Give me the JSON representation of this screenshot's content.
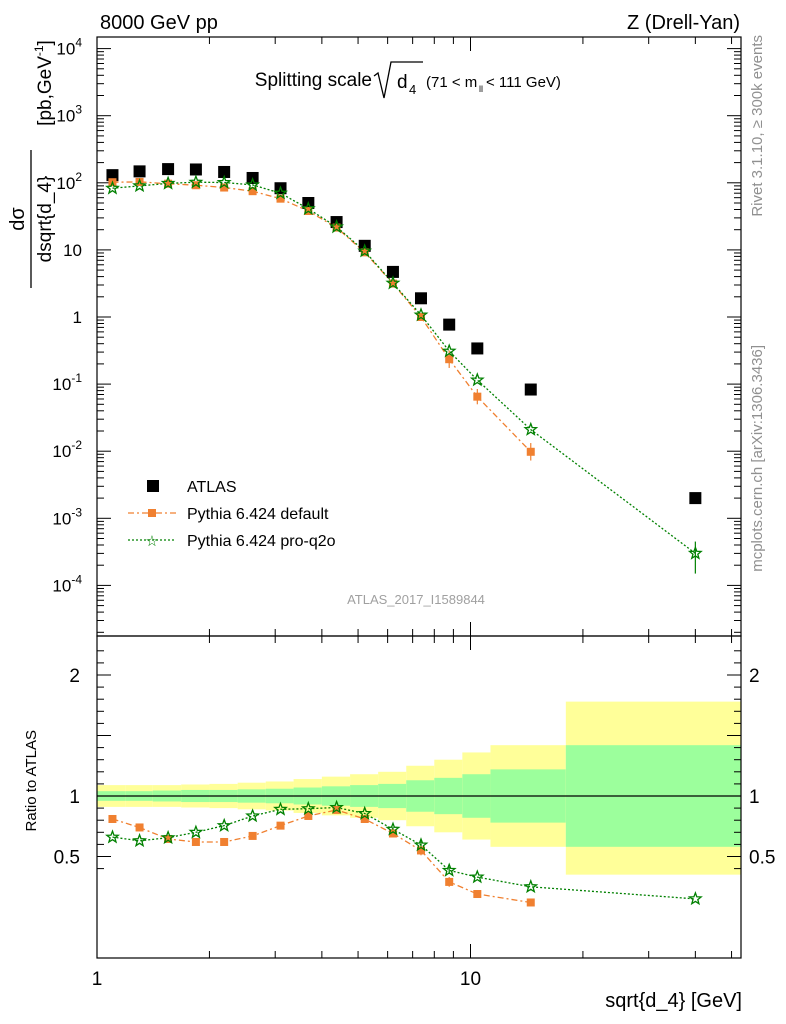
{
  "header": {
    "left": "8000 GeV pp",
    "right": "Z (Drell-Yan)"
  },
  "side": {
    "rivet": "Rivet 3.1.10, ≥ 300k events",
    "mcplots": "mcplots.cern.ch [arXiv:1306.3436]"
  },
  "chart_data": {
    "type": "scatter",
    "title": "Splitting scale √d₄ (71 < mₗₗ < 111 GeV)",
    "title_main": "Splitting scale",
    "title_sym": "d",
    "title_sym_sub": "4",
    "title_range": "(71 < m",
    "title_range_sub": "ll",
    "title_range_end": " < 111 GeV)",
    "watermark": "ATLAS_2017_I1589844",
    "xlabel": "sqrt{d_4} [GeV]",
    "ylabel_num": "dσ",
    "ylabel_den": "dsqrt{d_4}",
    "ylabel_unit": "[pb,GeV",
    "ylabel_unit_sup": "-1",
    "ylabel_unit_end": "]",
    "ratio_ylabel": "Ratio to ATLAS",
    "xscale": "log",
    "yscale": "log",
    "xlim": [
      1,
      53
    ],
    "ylim": [
      2e-05,
      20000
    ],
    "ratio_ylim": [
      0.35,
      2.3
    ],
    "x_tick_labels": [
      "1",
      "10"
    ],
    "y_tick_labels": [
      "10^4",
      "10^3",
      "10^2",
      "10",
      "1",
      "10^-1",
      "10^-2",
      "10^-3",
      "10^-4"
    ],
    "ratio_tick_labels": [
      "2",
      "1",
      "0.5"
    ],
    "legend_position": "bottom-left",
    "bins": [
      [
        1.0,
        1.19
      ],
      [
        1.19,
        1.41
      ],
      [
        1.41,
        1.68
      ],
      [
        1.68,
        2.0
      ],
      [
        2.0,
        2.38
      ],
      [
        2.38,
        2.83
      ],
      [
        2.83,
        3.36
      ],
      [
        3.36,
        4.0
      ],
      [
        4.0,
        4.76
      ],
      [
        4.76,
        5.66
      ],
      [
        5.66,
        6.73
      ],
      [
        6.73,
        8.0
      ],
      [
        8.0,
        9.51
      ],
      [
        9.51,
        11.31
      ],
      [
        11.31,
        18.0
      ],
      [
        18.0,
        53.0
      ]
    ],
    "series": [
      {
        "name": "ATLAS",
        "color": "#000000",
        "marker": "square",
        "x": [
          1.1,
          1.3,
          1.55,
          1.84,
          2.19,
          2.61,
          3.1,
          3.68,
          4.38,
          5.21,
          6.2,
          7.37,
          8.77,
          10.43,
          14.5,
          40.0
        ],
        "y": [
          130,
          148,
          160,
          158,
          145,
          118,
          83,
          50,
          26,
          11.5,
          4.7,
          1.9,
          0.77,
          0.34,
          0.083,
          0.002
        ]
      },
      {
        "name": "Pythia 6.424 default",
        "color": "#f08030",
        "marker": "square",
        "x": [
          1.1,
          1.3,
          1.55,
          1.84,
          2.19,
          2.61,
          3.1,
          3.68,
          4.38,
          5.21,
          6.2,
          7.37,
          8.77,
          10.43,
          14.5
        ],
        "y": [
          102,
          103,
          97,
          92,
          85,
          75,
          58,
          38,
          21.5,
          9.2,
          3.15,
          1.0,
          0.235,
          0.065,
          0.0098
        ]
      },
      {
        "name": "Pythia 6.424 pro-q2o",
        "color": "#008000",
        "marker": "star",
        "x": [
          1.1,
          1.3,
          1.55,
          1.84,
          2.19,
          2.61,
          3.1,
          3.68,
          4.38,
          5.21,
          6.2,
          7.37,
          8.77,
          10.43,
          14.5,
          40.0
        ],
        "y": [
          83,
          90,
          98,
          102,
          101,
          93,
          70,
          41,
          22,
          9.6,
          3.2,
          1.07,
          0.31,
          0.115,
          0.021,
          0.0003
        ]
      }
    ],
    "ratio": {
      "band_inner": [
        1.04,
        1.04,
        1.045,
        1.05,
        1.05,
        1.055,
        1.06,
        1.07,
        1.08,
        1.09,
        1.1,
        1.13,
        1.15,
        1.18,
        1.22,
        1.42
      ],
      "band_outer": [
        1.09,
        1.09,
        1.09,
        1.095,
        1.1,
        1.11,
        1.12,
        1.14,
        1.16,
        1.18,
        1.2,
        1.25,
        1.3,
        1.36,
        1.42,
        1.78
      ],
      "band_inner_low": [
        0.96,
        0.96,
        0.955,
        0.95,
        0.95,
        0.945,
        0.94,
        0.93,
        0.92,
        0.91,
        0.9,
        0.87,
        0.85,
        0.82,
        0.78,
        0.58
      ],
      "band_outer_low": [
        0.91,
        0.91,
        0.91,
        0.905,
        0.9,
        0.89,
        0.88,
        0.86,
        0.84,
        0.82,
        0.8,
        0.75,
        0.7,
        0.64,
        0.58,
        0.22
      ],
      "default": [
        0.81,
        0.74,
        0.645,
        0.62,
        0.62,
        0.67,
        0.755,
        0.835,
        0.885,
        0.81,
        0.69,
        0.55,
        0.29,
        0.19,
        0.12
      ],
      "proq2o": [
        0.66,
        0.63,
        0.655,
        0.7,
        0.755,
        0.835,
        0.89,
        0.895,
        0.905,
        0.855,
        0.725,
        0.595,
        0.385,
        0.33,
        0.25,
        0.15
      ]
    }
  },
  "colors": {
    "band_inner": "#9cff9c",
    "band_outer": "#ffff99",
    "default": "#f08030",
    "proq2o": "#008000"
  }
}
